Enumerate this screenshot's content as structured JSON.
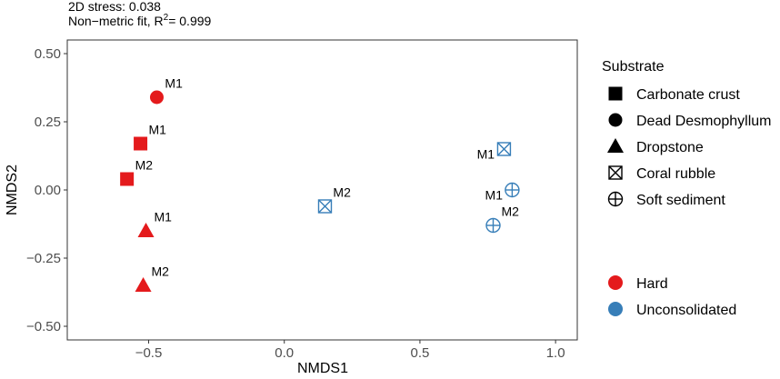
{
  "annotation": {
    "line1": "2D stress: 0.038",
    "line2_prefix": "Non−metric fit, R",
    "line2_sup": "2",
    "line2_suffix": "= 0.999"
  },
  "chart_data": {
    "type": "scatter",
    "xlabel": "NMDS1",
    "ylabel": "NMDS2",
    "xlim": [
      -0.8,
      1.08
    ],
    "ylim": [
      -0.55,
      0.55
    ],
    "xticks": [
      -0.5,
      0.0,
      0.5,
      1.0
    ],
    "xtick_labels": [
      "−0.5",
      "0.0",
      "0.5",
      "1.0"
    ],
    "yticks": [
      -0.5,
      -0.25,
      0.0,
      0.25,
      0.5
    ],
    "ytick_labels": [
      "−0.50",
      "−0.25",
      "0.00",
      "0.25",
      "0.50"
    ],
    "grid": false,
    "points": [
      {
        "x": -0.47,
        "y": 0.34,
        "shape": "circle",
        "color": "hard",
        "label": "M1",
        "lx": 0.03,
        "ly": 0.035
      },
      {
        "x": -0.53,
        "y": 0.17,
        "shape": "square",
        "color": "hard",
        "label": "M1",
        "lx": 0.03,
        "ly": 0.035
      },
      {
        "x": -0.58,
        "y": 0.04,
        "shape": "square",
        "color": "hard",
        "label": "M2",
        "lx": 0.03,
        "ly": 0.035
      },
      {
        "x": -0.51,
        "y": -0.15,
        "shape": "triangle",
        "color": "hard",
        "label": "M1",
        "lx": 0.03,
        "ly": 0.035
      },
      {
        "x": -0.52,
        "y": -0.35,
        "shape": "triangle",
        "color": "hard",
        "label": "M2",
        "lx": 0.03,
        "ly": 0.035
      },
      {
        "x": 0.15,
        "y": -0.06,
        "shape": "coral_rubble",
        "color": "unconsolidated",
        "label": "M2",
        "lx": 0.03,
        "ly": 0.035
      },
      {
        "x": 0.81,
        "y": 0.15,
        "shape": "coral_rubble",
        "color": "unconsolidated",
        "label": "M1",
        "lx": -0.1,
        "ly": -0.035
      },
      {
        "x": 0.84,
        "y": 0.0,
        "shape": "soft_sediment",
        "color": "unconsolidated",
        "label": "M1",
        "lx": -0.1,
        "ly": -0.035
      },
      {
        "x": 0.77,
        "y": -0.13,
        "shape": "soft_sediment",
        "color": "unconsolidated",
        "label": "M2",
        "lx": 0.03,
        "ly": 0.035
      }
    ],
    "legend_placement": "right",
    "legend_shape": {
      "title": "Substrate",
      "items": [
        {
          "shape": "square",
          "label": "Carbonate crust"
        },
        {
          "shape": "circle",
          "label": "Dead Desmophyllum"
        },
        {
          "shape": "triangle",
          "label": "Dropstone"
        },
        {
          "shape": "coral_rubble",
          "label": "Coral rubble"
        },
        {
          "shape": "soft_sediment",
          "label": "Soft sediment"
        }
      ]
    },
    "legend_color": {
      "items": [
        {
          "color": "hard",
          "label": "Hard"
        },
        {
          "color": "unconsolidated",
          "label": "Unconsolidated"
        }
      ]
    },
    "colors": {
      "hard": "#e41a1c",
      "unconsolidated": "#377eb8"
    }
  }
}
